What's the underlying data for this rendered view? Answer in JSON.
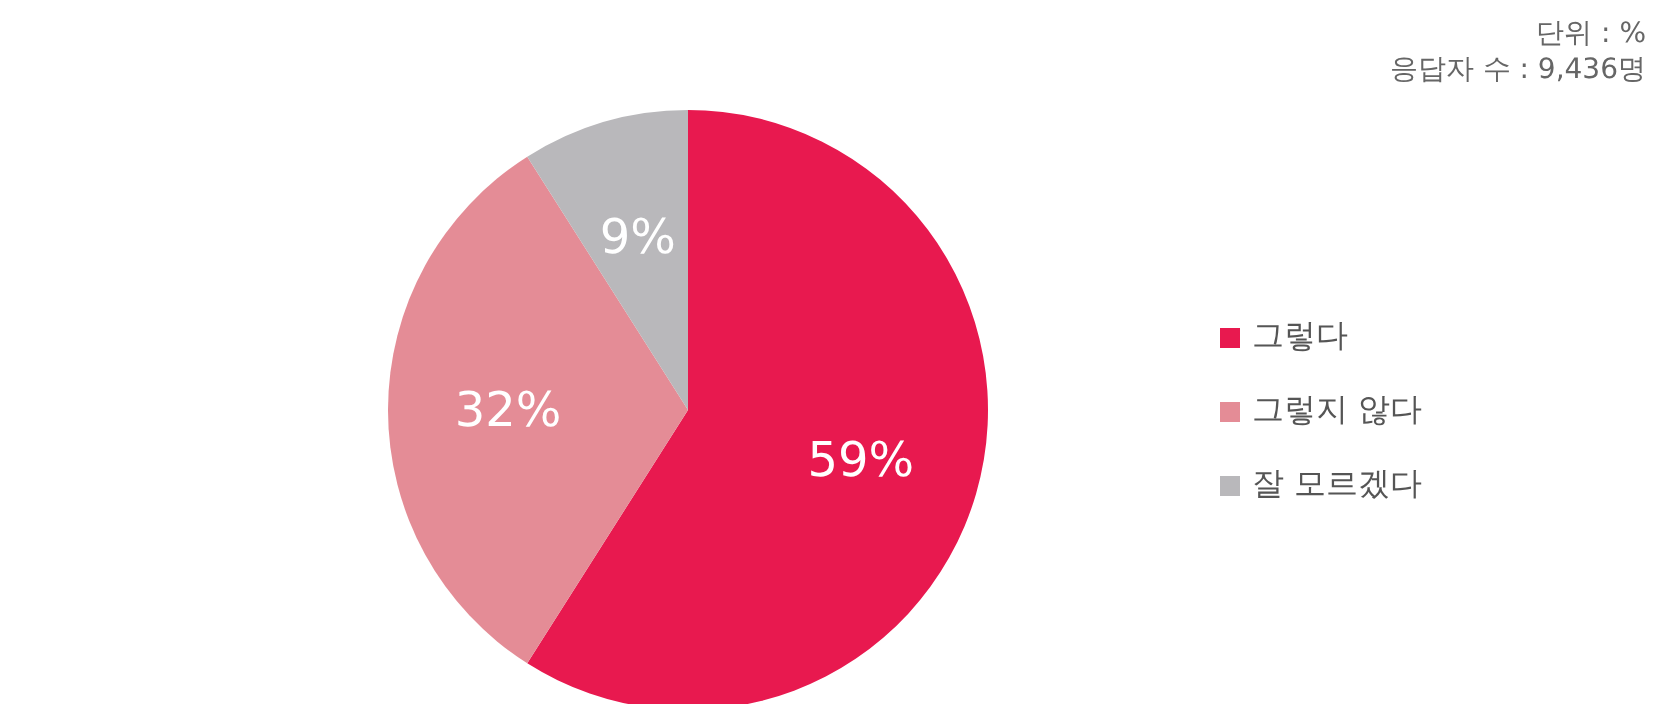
{
  "chart_data": {
    "type": "pie",
    "categories": [
      "그렇다",
      "그렇지 않다",
      "잘 모르겠다"
    ],
    "values": [
      59,
      32,
      9
    ],
    "colors": [
      "#e8194f",
      "#e48c96",
      "#b9b8bb"
    ],
    "value_labels": [
      "59%",
      "32%",
      "9%"
    ],
    "legend": "right",
    "annotations": [
      "단위 : %",
      "응답자 수 : 9,436명"
    ]
  }
}
